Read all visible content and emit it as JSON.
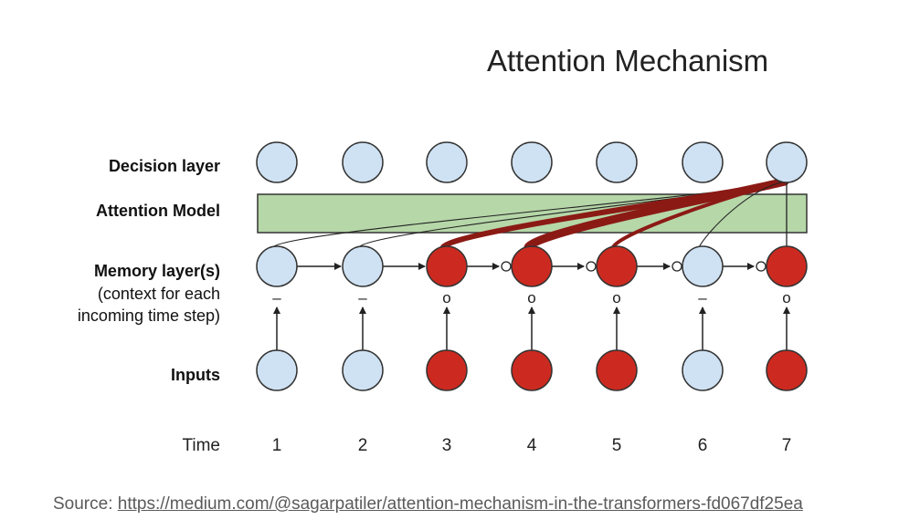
{
  "title": "Attention Mechanism",
  "row_labels": {
    "decision": "Decision layer",
    "attention": "Attention Model",
    "memory": "Memory layer(s)",
    "memory_sub_open": "(",
    "memory_sub_1": "context for each",
    "memory_sub_2": "incoming time step",
    "memory_sub_close": ")",
    "inputs": "Inputs",
    "time": "Time"
  },
  "time_steps": [
    "1",
    "2",
    "3",
    "4",
    "5",
    "6",
    "7"
  ],
  "input_active": [
    false,
    false,
    true,
    true,
    true,
    false,
    true
  ],
  "gate_marks": [
    "–",
    "–",
    "o",
    "o",
    "o",
    "–",
    "o"
  ],
  "colors": {
    "inactive_fill": "#cfe2f3",
    "active_fill": "#cc2a20",
    "attention_fill": "#b6d7a8",
    "attention_link": "#8b1a15",
    "stroke": "#333333"
  },
  "footer": {
    "prefix": "Source: ",
    "link": "https://medium.com/@sagarpatiler/attention-mechanism-in-the-transformers-fd067df25ea"
  }
}
